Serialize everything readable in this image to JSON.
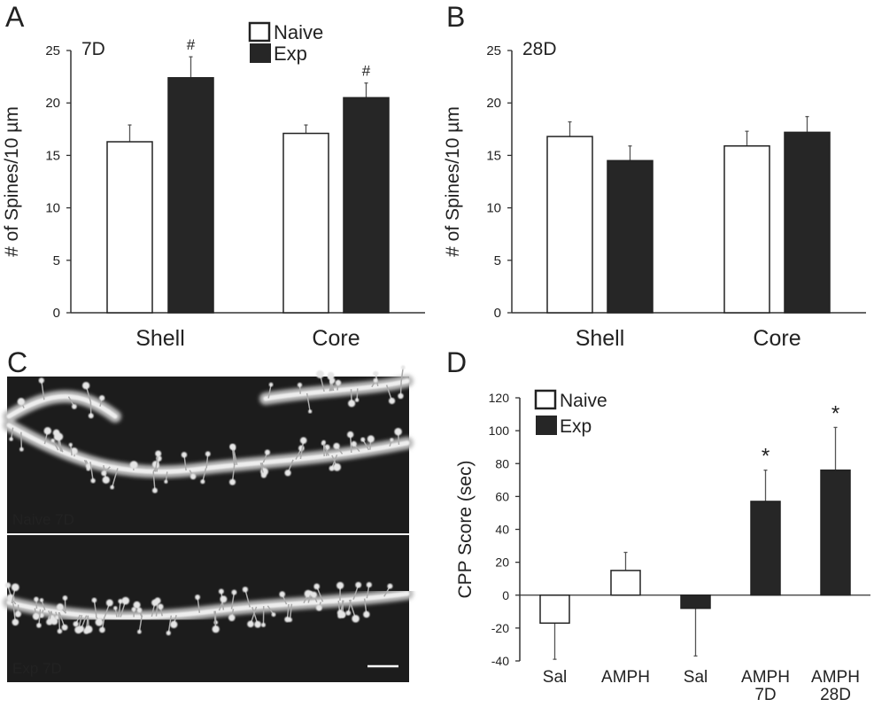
{
  "panels": {
    "A": "A",
    "B": "B",
    "C": "C",
    "D": "D"
  },
  "micrograph": {
    "top_label": "Naive 7D",
    "bottom_label": "Exp 7D"
  },
  "colors": {
    "naive_fill": "#ffffff",
    "exp_fill": "#262626",
    "axis": "#333333"
  },
  "chart_data": [
    {
      "id": "A",
      "type": "bar",
      "annotation": "7D",
      "ylabel": "# of Spines/10 µm",
      "xlabel": "",
      "ylim": [
        0,
        25
      ],
      "yticks": [
        "0",
        "5",
        "10",
        "15",
        "20",
        "25"
      ],
      "categories": [
        "Shell",
        "Core"
      ],
      "legend": {
        "position": "top-center",
        "entries": [
          "Naive",
          "Exp"
        ]
      },
      "series": [
        {
          "name": "Naive",
          "values": [
            16.3,
            17.1
          ],
          "error": [
            1.6,
            0.8
          ],
          "marks": [
            "",
            ""
          ]
        },
        {
          "name": "Exp",
          "values": [
            22.4,
            20.5
          ],
          "error": [
            2.0,
            1.4
          ],
          "marks": [
            "#",
            "#"
          ]
        }
      ]
    },
    {
      "id": "B",
      "type": "bar",
      "annotation": "28D",
      "ylabel": "# of Spines/10 µm",
      "xlabel": "",
      "ylim": [
        0,
        25
      ],
      "yticks": [
        "0",
        "5",
        "10",
        "15",
        "20",
        "25"
      ],
      "categories": [
        "Shell",
        "Core"
      ],
      "series": [
        {
          "name": "Naive",
          "values": [
            16.8,
            15.9
          ],
          "error": [
            1.4,
            1.4
          ],
          "marks": [
            "",
            ""
          ]
        },
        {
          "name": "Exp",
          "values": [
            14.5,
            17.2
          ],
          "error": [
            1.4,
            1.5
          ],
          "marks": [
            "",
            ""
          ]
        }
      ]
    },
    {
      "id": "D",
      "type": "bar",
      "ylabel": "CPP Score (sec)",
      "xlabel": "",
      "ylim": [
        -40,
        120
      ],
      "yticks": [
        "-40",
        "-20",
        "0",
        "20",
        "40",
        "60",
        "80",
        "100",
        "120"
      ],
      "legend": {
        "position": "top-left",
        "entries": [
          "Naive",
          "Exp"
        ]
      },
      "bars": [
        {
          "label": [
            "Sal"
          ],
          "group": "Naive",
          "value": -17,
          "error": 22,
          "mark": ""
        },
        {
          "label": [
            "AMPH"
          ],
          "group": "Naive",
          "value": 15,
          "error": 11,
          "mark": ""
        },
        {
          "label": [
            "Sal"
          ],
          "group": "Exp",
          "value": -8,
          "error": 29,
          "mark": ""
        },
        {
          "label": [
            "AMPH",
            "7D"
          ],
          "group": "Exp",
          "value": 57,
          "error": 19,
          "mark": "*"
        },
        {
          "label": [
            "AMPH",
            "28D"
          ],
          "group": "Exp",
          "value": 76,
          "error": 26,
          "mark": "*"
        }
      ]
    }
  ]
}
